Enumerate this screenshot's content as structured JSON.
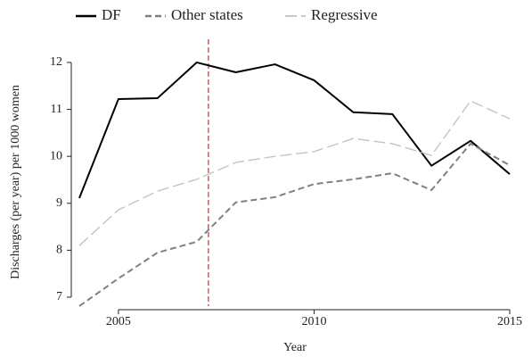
{
  "chart_data": {
    "type": "line",
    "x_label": "Year",
    "y_label": "Discharges (per year) per 1000 women",
    "x": [
      2004,
      2005,
      2006,
      2007,
      2008,
      2009,
      2010,
      2011,
      2012,
      2013,
      2014,
      2015
    ],
    "series": [
      {
        "name": "DF",
        "color": "#000000",
        "values": [
          9.11,
          11.22,
          11.24,
          12.0,
          11.79,
          11.96,
          11.62,
          10.94,
          10.9,
          9.8,
          10.33,
          9.62
        ]
      },
      {
        "name": "Other states",
        "color": "#808080",
        "values": [
          6.81,
          7.4,
          7.95,
          8.18,
          9.02,
          9.13,
          9.41,
          9.51,
          9.64,
          9.28,
          10.27,
          9.81
        ]
      },
      {
        "name": "Regressive",
        "color": "#c0c0c0",
        "values": [
          8.1,
          8.86,
          9.26,
          9.51,
          9.87,
          10.0,
          10.1,
          10.38,
          10.27,
          10.02,
          11.18,
          10.8
        ]
      }
    ],
    "xlim": [
      2004,
      2015
    ],
    "ylim": [
      6.8,
      12.1
    ],
    "xticks": [
      2005,
      2010,
      2015
    ],
    "yticks": [
      7,
      8,
      9,
      10,
      11,
      12
    ],
    "vline": 2007.3,
    "vline_color": "#cc3333",
    "legend": "top"
  }
}
